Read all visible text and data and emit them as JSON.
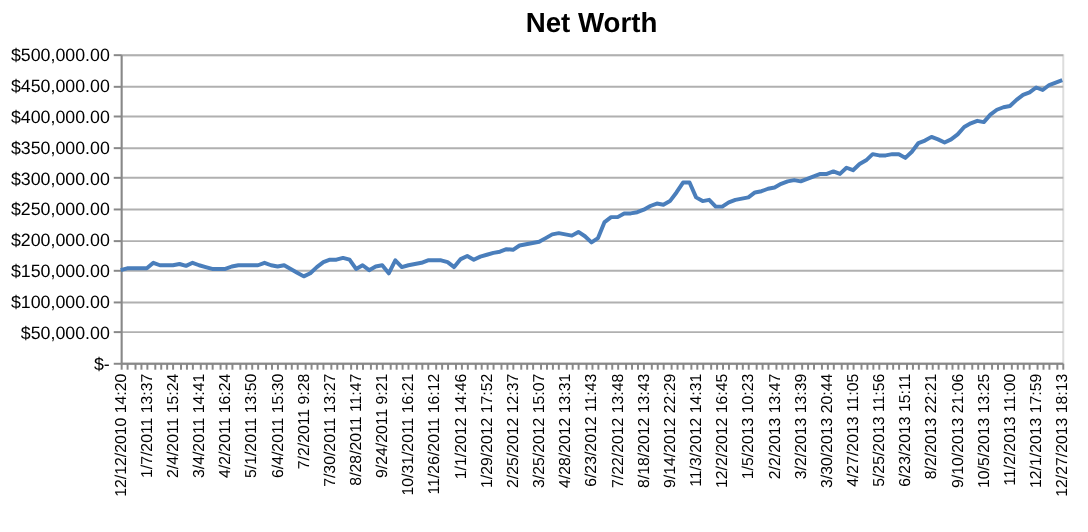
{
  "chart_data": {
    "type": "line",
    "title": "Net Worth",
    "categories": [
      "12/12/2010 14:20",
      null,
      null,
      null,
      "1/7/2011 13:37",
      null,
      null,
      null,
      "2/4/2011 15:24",
      null,
      null,
      null,
      "3/4/2011 14:41",
      null,
      null,
      null,
      "4/2/2011 16:24",
      null,
      null,
      null,
      "5/1/2011 13:50",
      null,
      null,
      null,
      "6/4/2011 15:30",
      null,
      null,
      null,
      "7/2/2011 9:28",
      null,
      null,
      null,
      "7/30/2011 13:27",
      null,
      null,
      null,
      "8/28/2011 11:47",
      null,
      null,
      null,
      "9/24/2011 9:21",
      null,
      null,
      null,
      "10/31/2011 16:21",
      null,
      null,
      null,
      "11/26/2011 16:12",
      null,
      null,
      null,
      "1/1/2012 14:46",
      null,
      null,
      null,
      "1/29/2012 17:52",
      null,
      null,
      null,
      "2/25/2012 12:37",
      null,
      null,
      null,
      "3/25/2012 15:07",
      null,
      null,
      null,
      "4/28/2012 13:31",
      null,
      null,
      null,
      "6/23/2012 11:43",
      null,
      null,
      null,
      "7/22/2012 13:48",
      null,
      null,
      null,
      "8/18/2012 13:43",
      null,
      null,
      null,
      "9/14/2012 22:29",
      null,
      null,
      null,
      "11/3/2012 14:31",
      null,
      null,
      null,
      "12/2/2012 16:45",
      null,
      null,
      null,
      "1/5/2013 10:23",
      null,
      null,
      null,
      "2/2/2013 13:47",
      null,
      null,
      null,
      "3/2/2013 13:39",
      null,
      null,
      null,
      "3/30/2013 20:44",
      null,
      null,
      null,
      "4/27/2013 11:05",
      null,
      null,
      null,
      "5/25/2013 11:56",
      null,
      null,
      null,
      "6/23/2013 15:11",
      null,
      null,
      null,
      "8/2/2013 22:21",
      null,
      null,
      null,
      "9/10/2013 21:06",
      null,
      null,
      null,
      "10/5/2013 13:25",
      null,
      null,
      null,
      "11/2/2013 11:00",
      null,
      null,
      null,
      "12/1/2013 17:59",
      null,
      null,
      null,
      "12/27/2013 18:13"
    ],
    "series": [
      {
        "color": "#4a7ebb",
        "values": [
          150000,
          153000,
          153000,
          153000,
          153000,
          162000,
          158000,
          158000,
          158000,
          160000,
          157000,
          162000,
          158000,
          155000,
          152000,
          152000,
          152000,
          156000,
          158000,
          158000,
          158000,
          158000,
          162000,
          158000,
          156000,
          158000,
          152000,
          146000,
          140000,
          145000,
          155000,
          163000,
          167000,
          167000,
          170000,
          167000,
          152000,
          158000,
          150000,
          156000,
          158000,
          145000,
          166000,
          155000,
          158000,
          160000,
          162000,
          166000,
          166000,
          166000,
          163000,
          155000,
          168000,
          173000,
          167000,
          172000,
          175000,
          178000,
          180000,
          184000,
          183000,
          190000,
          192000,
          194000,
          196000,
          202000,
          208000,
          210000,
          208000,
          206000,
          212000,
          205000,
          195000,
          202000,
          228000,
          236000,
          236000,
          242000,
          242000,
          244000,
          248000,
          254000,
          258000,
          256000,
          262000,
          276000,
          292000,
          292000,
          268000,
          262000,
          264000,
          253000,
          253000,
          260000,
          264000,
          266000,
          268000,
          276000,
          278000,
          282000,
          284000,
          290000,
          294000,
          296000,
          294000,
          298000,
          302000,
          306000,
          306000,
          310000,
          306000,
          316000,
          312000,
          322000,
          328000,
          338000,
          336000,
          336000,
          338000,
          338000,
          332000,
          342000,
          356000,
          360000,
          366000,
          362000,
          357000,
          362000,
          370000,
          382000,
          388000,
          392000,
          390000,
          402000,
          410000,
          414000,
          416000,
          426000,
          434000,
          438000,
          446000,
          442000,
          450000,
          454000,
          458000
        ]
      }
    ],
    "ylim": [
      0,
      500000
    ],
    "yticks": [
      {
        "value": 0,
        "label": "$-"
      },
      {
        "value": 50000,
        "label": "$50,000.00"
      },
      {
        "value": 100000,
        "label": "$100,000.00"
      },
      {
        "value": 150000,
        "label": "$150,000.00"
      },
      {
        "value": 200000,
        "label": "$200,000.00"
      },
      {
        "value": 250000,
        "label": "$250,000.00"
      },
      {
        "value": 300000,
        "label": "$300,000.00"
      },
      {
        "value": 350000,
        "label": "$350,000.00"
      },
      {
        "value": 400000,
        "label": "$400,000.00"
      },
      {
        "value": 450000,
        "label": "$450,000.00"
      },
      {
        "value": 500000,
        "label": "$500,000.00"
      }
    ],
    "grid": "y",
    "legend": false,
    "marker": "none",
    "line_style": "solid"
  }
}
